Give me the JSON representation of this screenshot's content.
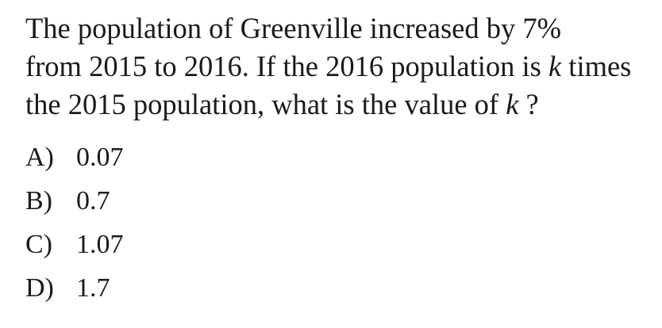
{
  "question": {
    "line1": "The population of Greenville increased by 7%",
    "line2_before": "from 2015 to 2016. If the 2016 population is ",
    "variable": "k",
    "line2_after": " times",
    "line3_before": "the 2015 population, what is the value of ",
    "line3_after": " ?"
  },
  "choices": [
    {
      "letter": "A)",
      "value": "0.07"
    },
    {
      "letter": "B)",
      "value": "0.7"
    },
    {
      "letter": "C)",
      "value": "1.07"
    },
    {
      "letter": "D)",
      "value": "1.7"
    }
  ]
}
